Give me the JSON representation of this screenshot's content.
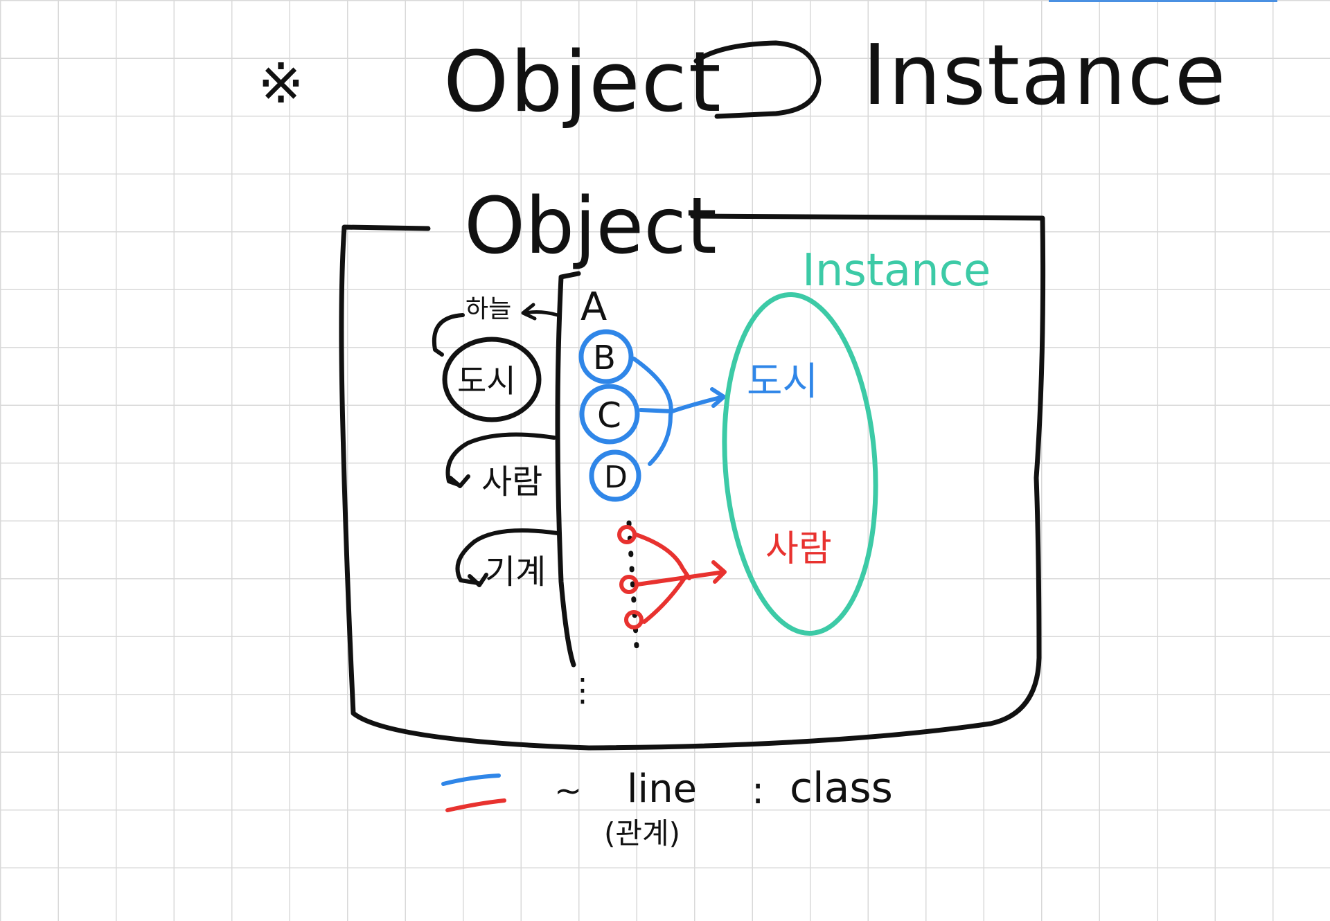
{
  "colors": {
    "black": "#111111",
    "blue": "#2f86e8",
    "red": "#e8322f",
    "teal": "#3ccaa6",
    "grid": "#d9d9d9"
  },
  "header": {
    "marker": "※",
    "left": "Object",
    "symbol": "⊃",
    "right": "Instance"
  },
  "box": {
    "label": "Object"
  },
  "left_list": {
    "header": "하늘",
    "items": [
      "도시",
      "사람",
      "기계"
    ]
  },
  "column": {
    "items": [
      "A",
      "B",
      "C",
      "D"
    ],
    "ellipsis": "⋮"
  },
  "instance": {
    "label": "Instance",
    "blue_item": "도시",
    "red_item": "사람"
  },
  "legend": {
    "tilde": "~",
    "line_label": "line",
    "relation": "(관계)",
    "colon": ":",
    "class_label": "class"
  }
}
